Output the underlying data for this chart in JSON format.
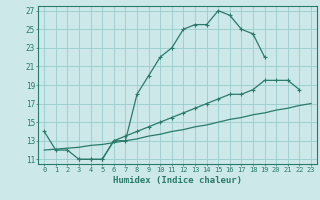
{
  "line1_x": [
    0,
    1,
    2,
    3,
    4,
    5,
    6,
    7,
    8,
    9,
    10,
    11,
    12,
    13,
    14,
    15,
    16,
    17,
    18,
    19
  ],
  "line1_y": [
    14,
    12,
    12,
    11,
    11,
    11,
    13,
    13,
    18,
    20,
    22,
    23,
    25,
    25.5,
    25.5,
    27,
    26.5,
    25,
    24.5,
    22
  ],
  "line2b_x": [
    3,
    4,
    5,
    6,
    7,
    8,
    9,
    10,
    11,
    12,
    13,
    14,
    15,
    16,
    17,
    18,
    19,
    20,
    21,
    22
  ],
  "line2b_y": [
    11,
    11,
    11,
    13,
    13.5,
    14,
    14.5,
    15,
    15.5,
    16,
    16.5,
    17,
    17.5,
    18,
    18,
    18.5,
    19.5,
    19.5,
    19.5,
    18.5
  ],
  "line3_x": [
    0,
    1,
    2,
    3,
    4,
    5,
    6,
    7,
    8,
    9,
    10,
    11,
    12,
    13,
    14,
    15,
    16,
    17,
    18,
    19,
    20,
    21,
    22,
    23
  ],
  "line3_y": [
    12.0,
    12.1,
    12.2,
    12.3,
    12.5,
    12.6,
    12.8,
    13.0,
    13.2,
    13.5,
    13.7,
    14.0,
    14.2,
    14.5,
    14.7,
    15.0,
    15.3,
    15.5,
    15.8,
    16.0,
    16.3,
    16.5,
    16.8,
    17.0
  ],
  "color": "#2a7a6a",
  "bg_color": "#cce8e8",
  "grid_color": "#99cccc",
  "xlabel": "Humidex (Indice chaleur)",
  "xlim": [
    -0.5,
    23.5
  ],
  "ylim": [
    10.5,
    27.5
  ],
  "yticks": [
    11,
    13,
    15,
    17,
    19,
    21,
    23,
    25,
    27
  ],
  "xticks": [
    0,
    1,
    2,
    3,
    4,
    5,
    6,
    7,
    8,
    9,
    10,
    11,
    12,
    13,
    14,
    15,
    16,
    17,
    18,
    19,
    20,
    21,
    22,
    23
  ]
}
